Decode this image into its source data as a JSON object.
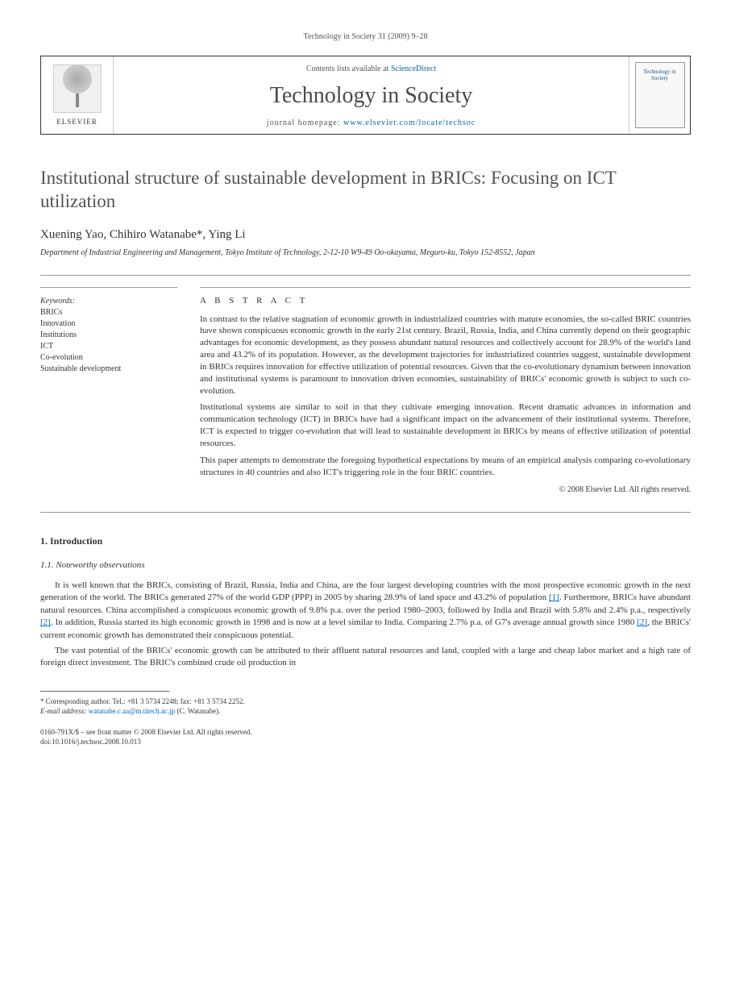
{
  "journal_ref": "Technology in Society 31 (2009) 9–28",
  "header": {
    "contents_prefix": "Contents lists available at ",
    "contents_link": "ScienceDirect",
    "journal_name": "Technology in Society",
    "homepage_prefix": "journal homepage: ",
    "homepage_url": "www.elsevier.com/locate/techsoc",
    "publisher": "ELSEVIER",
    "cover_title": "Technology in Society"
  },
  "title": "Institutional structure of sustainable development in BRICs: Focusing on ICT utilization",
  "authors": "Xuening Yao, Chihiro Watanabe*, Ying Li",
  "affiliation": "Department of Industrial Engineering and Management, Tokyo Institute of Technology, 2-12-10 W9-49 Oo-okayama, Meguro-ku, Tokyo 152-8552, Japan",
  "keywords": {
    "heading": "Keywords:",
    "items": [
      "BRICs",
      "Innovation",
      "Institutions",
      "ICT",
      "Co-evolution",
      "Sustainable development"
    ]
  },
  "abstract": {
    "heading": "A B S T R A C T",
    "p1": "In contrast to the relative stagnation of economic growth in industrialized countries with mature economies, the so-called BRIC countries have shown conspicuous economic growth in the early 21st century. Brazil, Russia, India, and China currently depend on their geographic advantages for economic development, as they possess abundant natural resources and collectively account for 28.9% of the world's land area and 43.2% of its population. However, as the development trajectories for industrialized countries suggest, sustainable development in BRICs requires innovation for effective utilization of potential resources. Given that the co-evolutionary dynamism between innovation and institutional systems is paramount to innovation driven economies, sustainability of BRICs' economic growth is subject to such co-evolution.",
    "p2": "Institutional systems are similar to soil in that they cultivate emerging innovation. Recent dramatic advances in information and communication technology (ICT) in BRICs have had a significant impact on the advancement of their institutional systems. Therefore, ICT is expected to trigger co-evolution that will lead to sustainable development in BRICs by means of effective utilization of potential resources.",
    "p3": "This paper attempts to demonstrate the foregoing hypothetical expectations by means of an empirical analysis comparing co-evolutionary structures in 40 countries and also ICT's triggering role in the four BRIC countries.",
    "copyright": "© 2008 Elsevier Ltd. All rights reserved."
  },
  "section": {
    "num": "1. Introduction",
    "sub": "1.1. Noteworthy observations",
    "p1_a": "It is well known that the BRICs, consisting of Brazil, Russia, India and China, are the four largest developing countries with the most prospective economic growth in the next generation of the world. The BRICs generated 27% of the world GDP (PPP) in 2005 by sharing 28.9% of land space and 43.2% of population ",
    "cite1": "[1]",
    "p1_b": ". Furthermore, BRICs have abundant natural resources. China accomplished a conspicuous economic growth of 9.8% p.a. over the period 1980–2003, followed by India and Brazil with 5.8% and 2.4% p.a., respectively ",
    "cite2": "[2]",
    "p1_c": ". In addition, Russia started its high economic growth in 1998 and is now at a level similar to India. Comparing 2.7% p.a. of G7's average annual growth since 1980 ",
    "cite3": "[2]",
    "p1_d": ", the BRICs' current economic growth has demonstrated their conspicuous potential.",
    "p2": "The vast potential of the BRICs' economic growth can be attributed to their affluent natural resources and land, coupled with a large and cheap labor market and a high rate of foreign direct investment. The BRIC's combined crude oil production in"
  },
  "footnote": {
    "corr": "* Corresponding author. Tel.: +81 3 5734 2248; fax: +81 3 5734 2252.",
    "email_label": "E-mail address: ",
    "email": "watanabe.c.aa@m.titech.ac.jp",
    "email_suffix": " (C. Watanabe)."
  },
  "doi": {
    "line1": "0160-791X/$ – see front matter © 2008 Elsevier Ltd. All rights reserved.",
    "line2": "doi:10.1016/j.techsoc.2008.10.013"
  },
  "colors": {
    "text": "#333333",
    "link": "#0066cc",
    "journal_gray": "#4a4a4a",
    "border": "#999999"
  }
}
